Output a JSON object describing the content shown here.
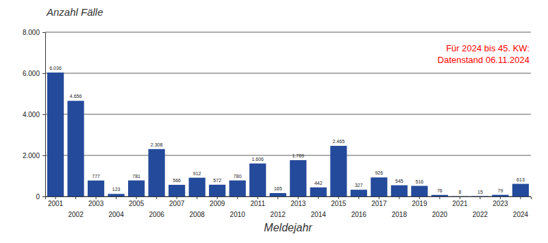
{
  "chart_data": {
    "type": "bar",
    "ylabel": "Anzahl Fälle",
    "xlabel": "Meldejahr",
    "annotation": [
      "Für 2024 bis 45. KW:",
      "Datenstand 06.11.2024"
    ],
    "categories": [
      "2001",
      "2002",
      "2003",
      "2004",
      "2005",
      "2006",
      "2007",
      "2008",
      "2009",
      "2010",
      "2011",
      "2012",
      "2013",
      "2014",
      "2015",
      "2016",
      "2017",
      "2018",
      "2019",
      "2020",
      "2021",
      "2022",
      "2023",
      "2024"
    ],
    "values": [
      6036,
      4656,
      777,
      123,
      781,
      2308,
      566,
      912,
      572,
      780,
      1606,
      165,
      1769,
      442,
      2465,
      327,
      926,
      545,
      516,
      76,
      8,
      15,
      79,
      613
    ],
    "value_labels": [
      "6.036",
      "4.656",
      "777",
      "123",
      "781",
      "2.308",
      "566",
      "912",
      "572",
      "780",
      "1.606",
      "165",
      "1.769",
      "442",
      "2.465",
      "327",
      "926",
      "545",
      "516",
      "76",
      "8",
      "15",
      "79",
      "613"
    ],
    "color": "#244a9b",
    "ylim": [
      0,
      8000
    ],
    "yticks": [
      0,
      {
        "value": 2000,
        "label": "2.000"
      },
      {
        "value": 4000,
        "label": "4.000"
      },
      {
        "value": 6000,
        "label": "6.000"
      },
      {
        "value": 8000,
        "label": "8.000"
      }
    ],
    "grid": true,
    "data_labels": true
  }
}
